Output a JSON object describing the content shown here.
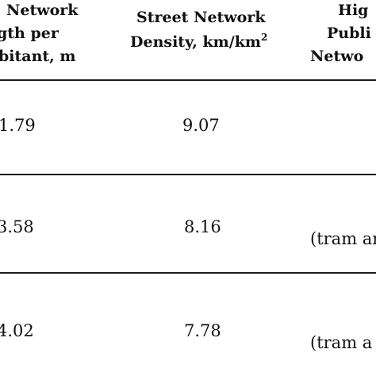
{
  "header": {
    "col1": {
      "line1": "Network",
      "line2": "gth per",
      "line3": "bitant, m"
    },
    "col2": {
      "line1": "Street Network",
      "line2_text": "Density, km/km",
      "line2_sup": "2"
    },
    "col3": {
      "line1": "Hig",
      "line2": "Publi",
      "line3": "Netwo"
    }
  },
  "rows": [
    {
      "col1": "1.79",
      "col2": "9.07",
      "col3": ""
    },
    {
      "col1": "3.58",
      "col2": "8.16",
      "col3": "(tram an"
    },
    {
      "col1": "4.02",
      "col2": "7.78",
      "col3": "(tram a"
    }
  ]
}
